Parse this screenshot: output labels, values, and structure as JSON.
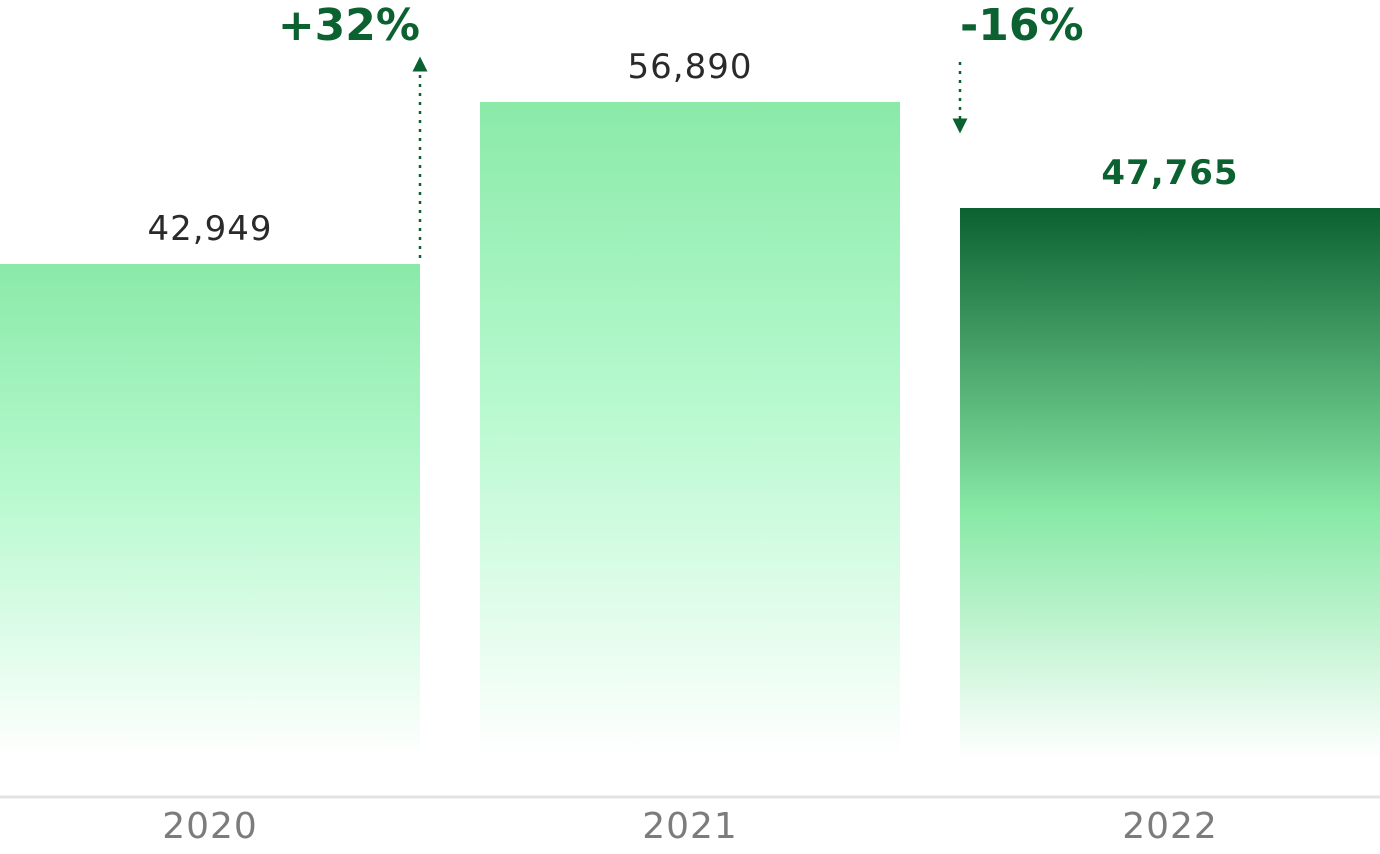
{
  "chart_data": {
    "type": "bar",
    "categories": [
      "2020",
      "2021",
      "2022"
    ],
    "values": [
      42949,
      56890,
      47765
    ],
    "value_labels": [
      "42,949",
      "56,890",
      "47,765"
    ],
    "highlighted_category": "2022",
    "changes": [
      {
        "from": "2020",
        "to": "2021",
        "label": "+32%",
        "direction": "up"
      },
      {
        "from": "2021",
        "to": "2022",
        "label": "-16%",
        "direction": "down"
      }
    ],
    "title": "",
    "xlabel": "",
    "ylabel": "",
    "grid": false,
    "colors": {
      "bar_top": "#8aeaa8",
      "bar_mid": "#b6f9ce",
      "bar_fade": "#ffffff",
      "highlight_top": "#0b6130",
      "highlight_mid": "#88e9a6",
      "accent_text": "#0b6130",
      "value_text": "#2a2a2a",
      "axis_text": "#7c7c7c",
      "baseline": "#e3e3e3"
    }
  }
}
